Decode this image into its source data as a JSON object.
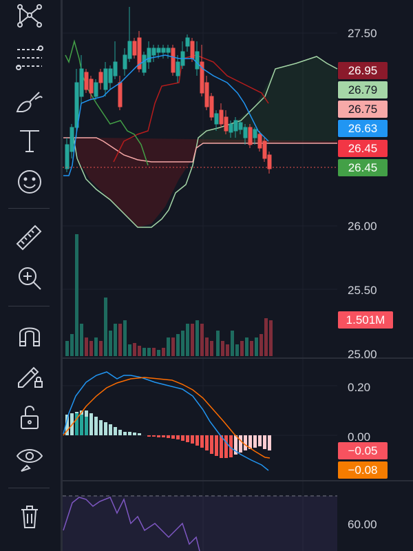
{
  "toolbar": {
    "tools": [
      {
        "name": "pattern-tool-icon"
      },
      {
        "name": "fib-tool-icon"
      },
      {
        "name": "brush-tool-icon"
      },
      {
        "name": "text-tool-icon"
      },
      {
        "name": "emoji-tool-icon"
      },
      {
        "name": "ruler-tool-icon"
      },
      {
        "name": "zoom-in-icon"
      },
      {
        "name": "magnet-icon"
      },
      {
        "name": "lock-drawing-icon"
      },
      {
        "name": "unlock-icon"
      },
      {
        "name": "eye-icon"
      },
      {
        "name": "trash-icon"
      }
    ]
  },
  "price_axis": [
    "27.50",
    "26.00",
    "25.50",
    "25.00"
  ],
  "price_badges": [
    {
      "value": "26.95",
      "color": "#8b1a2b",
      "text_color": "#ffffff"
    },
    {
      "value": "26.79",
      "color": "#a5d6a7",
      "text_color": "#131722"
    },
    {
      "value": "26.75",
      "color": "#f7a9a8",
      "text_color": "#131722"
    },
    {
      "value": "26.63",
      "color": "#2196f3",
      "text_color": "#ffffff"
    },
    {
      "value": "26.45",
      "color": "#f23645",
      "text_color": "#ffffff"
    },
    {
      "value": "26.45",
      "color": "#43a047",
      "text_color": "#ffffff"
    }
  ],
  "volume_badge": {
    "value": "1.501M",
    "color": "#f7525f"
  },
  "macd_axis": [
    "0.20",
    "0.00"
  ],
  "macd_badges": [
    {
      "value": "−0.05",
      "color": "#f7525f"
    },
    {
      "value": "−0.08",
      "color": "#f57c00"
    }
  ],
  "rsi_axis": [
    "60.00"
  ],
  "colors": {
    "background": "#131722",
    "candle_up": "#26a69a",
    "candle_down": "#ef5350",
    "tenkan": "#2196f3",
    "kijun": "#b71c1c",
    "chikou": "#43a047",
    "span_a": "#a5d6a7",
    "span_b": "#f7a9a8",
    "macd_line": "#2196f3",
    "signal_line": "#ff6d00",
    "rsi_line": "#7e57c2"
  }
}
